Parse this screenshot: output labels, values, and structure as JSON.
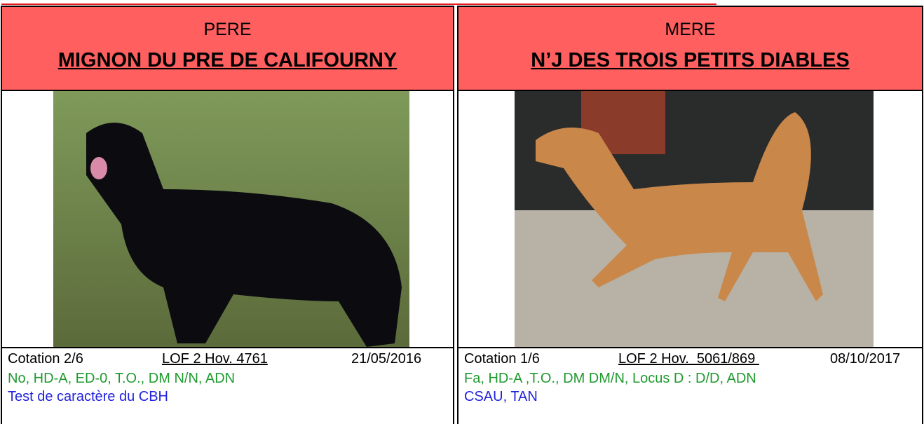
{
  "left": {
    "role": "PERE",
    "name": "MIGNON DU PRE DE CALIFOURNY",
    "cotation": "Cotation 2/6",
    "lof": "LOF 2 Hov. 4761",
    "date": "21/05/2016",
    "health": "No, HD-A, ED-0, T.O., DM N/N, ADN",
    "notes": "Test de caractère du CBH"
  },
  "right": {
    "role": "MERE",
    "name": "N’J DES TROIS PETITS DIABLES",
    "cotation": "Cotation 1/6",
    "lof": "LOF 2 Hov.  5061/869 ",
    "date": "08/10/2017",
    "health": "Fa, HD-A ,T.O., DM DM/N, Locus D : D/D, ADN",
    "notes": "CSAU, TAN"
  }
}
